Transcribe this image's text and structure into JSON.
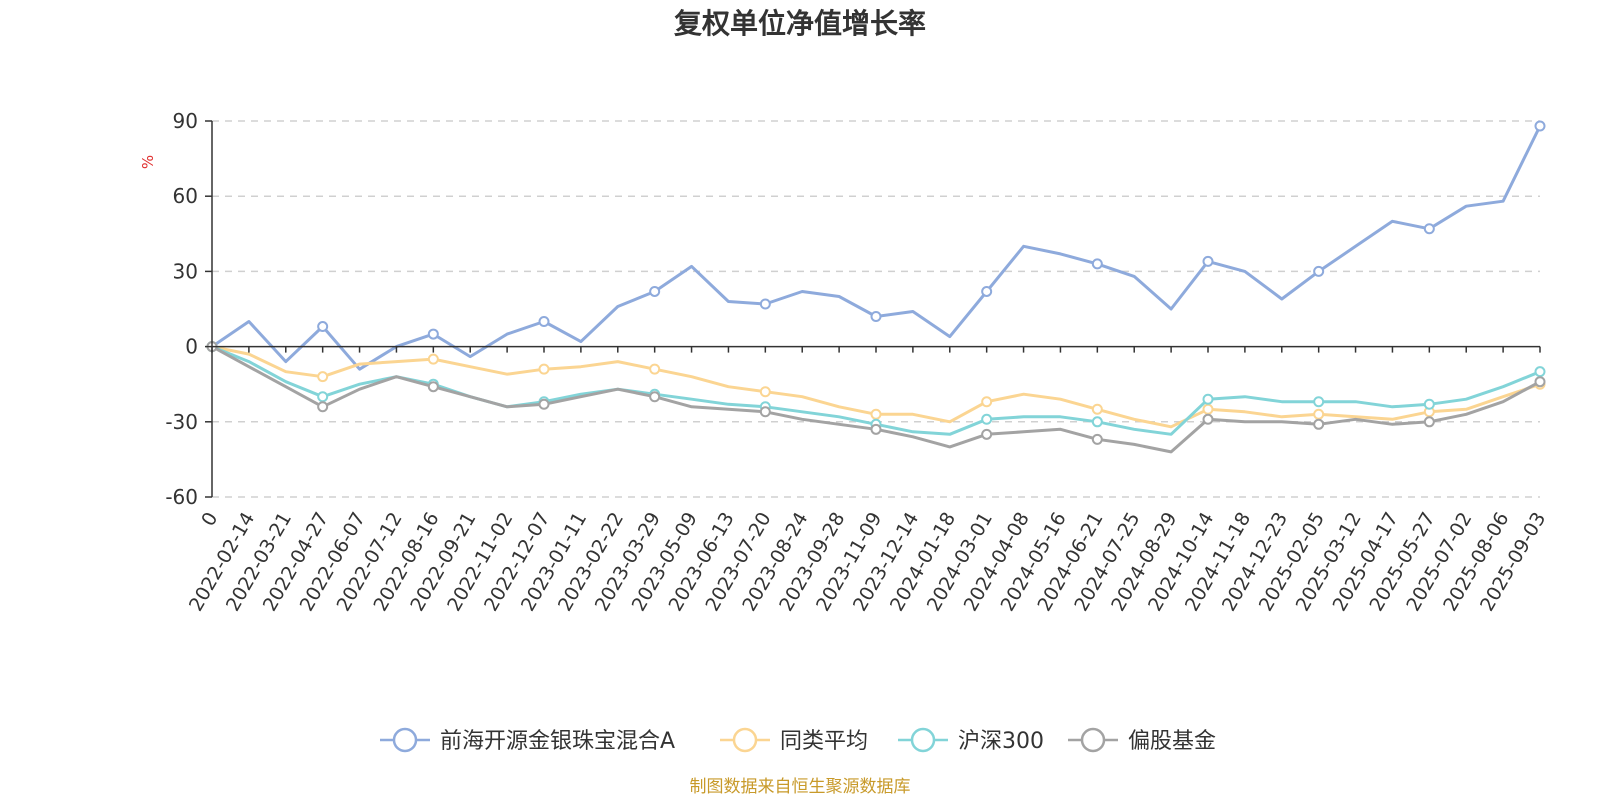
{
  "chart_data": {
    "type": "line",
    "title": "复权单位净值增长率",
    "ylabel": "%",
    "ylim": [
      -60,
      90
    ],
    "yticks": [
      90,
      60,
      30,
      0,
      -30,
      -60
    ],
    "grid": true,
    "legend_position": "bottom",
    "x_labels": [
      "0",
      "2022-02-14",
      "2022-03-21",
      "2022-04-27",
      "2022-06-07",
      "2022-07-12",
      "2022-08-16",
      "2022-09-21",
      "2022-11-02",
      "2022-12-07",
      "2023-01-11",
      "2023-02-22",
      "2023-03-29",
      "2023-05-09",
      "2023-06-13",
      "2023-07-20",
      "2023-08-24",
      "2023-09-28",
      "2023-11-09",
      "2023-12-14",
      "2024-01-18",
      "2024-03-01",
      "2024-04-08",
      "2024-05-16",
      "2024-06-21",
      "2024-07-25",
      "2024-08-29",
      "2024-10-14",
      "2024-11-18",
      "2024-12-23",
      "2025-02-05",
      "2025-03-12",
      "2025-04-17",
      "2025-05-27",
      "2025-07-02",
      "2025-08-06",
      "2025-09-03"
    ],
    "series": [
      {
        "name": "前海开源金银珠宝混合A",
        "color": "#8eaadc",
        "values": [
          0,
          10,
          -6,
          8,
          -9,
          0,
          5,
          -4,
          5,
          10,
          2,
          16,
          22,
          32,
          18,
          17,
          22,
          20,
          12,
          14,
          4,
          22,
          40,
          37,
          33,
          28,
          15,
          34,
          30,
          19,
          30,
          40,
          50,
          47,
          56,
          58,
          88
        ]
      },
      {
        "name": "同类平均",
        "color": "#fbd592",
        "values": [
          0,
          -3,
          -10,
          -12,
          -7,
          -6,
          -5,
          -8,
          -11,
          -9,
          -8,
          -6,
          -9,
          -12,
          -16,
          -18,
          -20,
          -24,
          -27,
          -27,
          -30,
          -22,
          -19,
          -21,
          -25,
          -29,
          -32,
          -25,
          -26,
          -28,
          -27,
          -28,
          -29,
          -26,
          -25,
          -20,
          -15
        ]
      },
      {
        "name": "沪深300",
        "color": "#82d4d8",
        "values": [
          0,
          -6,
          -14,
          -20,
          -15,
          -12,
          -15,
          -20,
          -24,
          -22,
          -19,
          -17,
          -19,
          -21,
          -23,
          -24,
          -26,
          -28,
          -31,
          -34,
          -35,
          -29,
          -28,
          -28,
          -30,
          -33,
          -35,
          -21,
          -20,
          -22,
          -22,
          -22,
          -24,
          -23,
          -21,
          -16,
          -10
        ]
      },
      {
        "name": "偏股基金",
        "color": "#a3a3a3",
        "values": [
          0,
          -8,
          -16,
          -24,
          -17,
          -12,
          -16,
          -20,
          -24,
          -23,
          -20,
          -17,
          -20,
          -24,
          -25,
          -26,
          -29,
          -31,
          -33,
          -36,
          -40,
          -35,
          -34,
          -33,
          -37,
          -39,
          -42,
          -29,
          -30,
          -30,
          -31,
          -29,
          -31,
          -30,
          -27,
          -22,
          -14
        ]
      }
    ]
  },
  "source": "制图数据来自恒生聚源数据库"
}
